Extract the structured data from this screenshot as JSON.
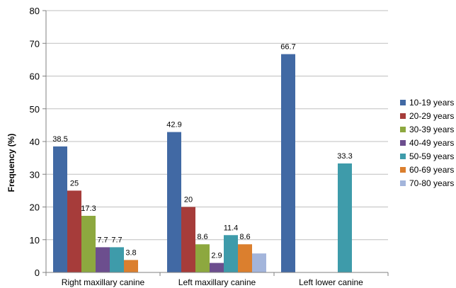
{
  "chart_data": {
    "type": "bar",
    "title": "",
    "xlabel": "",
    "ylabel": "Frequency (%)",
    "ylim": [
      0,
      80
    ],
    "yticks": [
      "0",
      "10",
      "20",
      "30",
      "40",
      "50",
      "60",
      "70",
      "80"
    ],
    "grid": true,
    "legend_position": "right",
    "categories": [
      "Right maxillary canine",
      "Left maxillary canine",
      "Left lower canine"
    ],
    "series": [
      {
        "name": "10-19 years",
        "color": "#4169A4",
        "values": [
          38.5,
          42.9,
          66.7
        ],
        "labels": [
          "38.5",
          "42.9",
          "66.7"
        ]
      },
      {
        "name": "20-29 years",
        "color": "#A63C3A",
        "values": [
          25,
          20,
          0
        ],
        "labels": [
          "25",
          "20",
          ""
        ]
      },
      {
        "name": "30-39 years",
        "color": "#8DA83F",
        "values": [
          17.3,
          8.6,
          0
        ],
        "labels": [
          "17.3",
          "8.6",
          ""
        ]
      },
      {
        "name": "40-49 years",
        "color": "#6C4E8E",
        "values": [
          7.7,
          2.9,
          0
        ],
        "labels": [
          "7.7",
          "2.9",
          ""
        ]
      },
      {
        "name": "50-59 years",
        "color": "#3E9BAA",
        "values": [
          7.7,
          11.4,
          33.3
        ],
        "labels": [
          "7.7",
          "11.4",
          "33.3"
        ]
      },
      {
        "name": "60-69 years",
        "color": "#DB7F2E",
        "values": [
          3.8,
          8.6,
          0
        ],
        "labels": [
          "3.8",
          "8.6",
          ""
        ]
      },
      {
        "name": "70-80 years",
        "color": "#A3B5DB",
        "values": [
          0,
          5.8,
          0
        ],
        "labels": [
          "",
          "",
          ""
        ]
      }
    ]
  }
}
